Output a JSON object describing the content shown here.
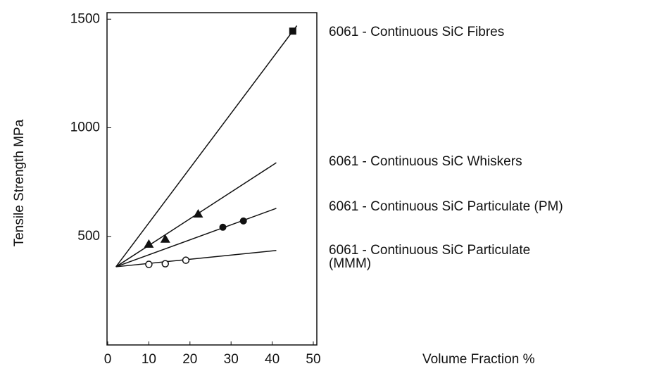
{
  "chart_data": {
    "type": "line",
    "x_label": "Volume Fraction %",
    "y_label": "Tensile Strength MPa",
    "xlim": [
      0,
      50
    ],
    "xticks": [
      0,
      10,
      20,
      30,
      40,
      50
    ],
    "ylim": [
      0,
      1530
    ],
    "yticks": [
      500,
      1000,
      1500
    ],
    "series": [
      {
        "name": "6061 - Continuous SiC Fibres",
        "color": "#111111",
        "marker": "square",
        "line_x": [
          2,
          46
        ],
        "line_y": [
          360,
          1470
        ],
        "x": [
          45
        ],
        "values": [
          1445
        ]
      },
      {
        "name": "6061 - Continuous SiC Whiskers",
        "color": "#111111",
        "marker": "triangle",
        "line_x": [
          2,
          41
        ],
        "line_y": [
          360,
          839
        ],
        "x": [
          10,
          14,
          22
        ],
        "values": [
          464,
          487,
          603
        ]
      },
      {
        "name": "6061 - Continuous SiC Particulate (PM)",
        "color": "#111111",
        "marker": "circle",
        "line_x": [
          2,
          41
        ],
        "line_y": [
          360,
          629
        ],
        "x": [
          28,
          33
        ],
        "values": [
          542,
          571
        ]
      },
      {
        "name": "6061 - Continuous SiC Particulate\n(MMM)",
        "color": "#111111",
        "marker": "open-circle",
        "line_x": [
          2,
          41
        ],
        "line_y": [
          360,
          435
        ],
        "x": [
          10,
          14,
          19
        ],
        "values": [
          371,
          374,
          390
        ]
      }
    ]
  }
}
